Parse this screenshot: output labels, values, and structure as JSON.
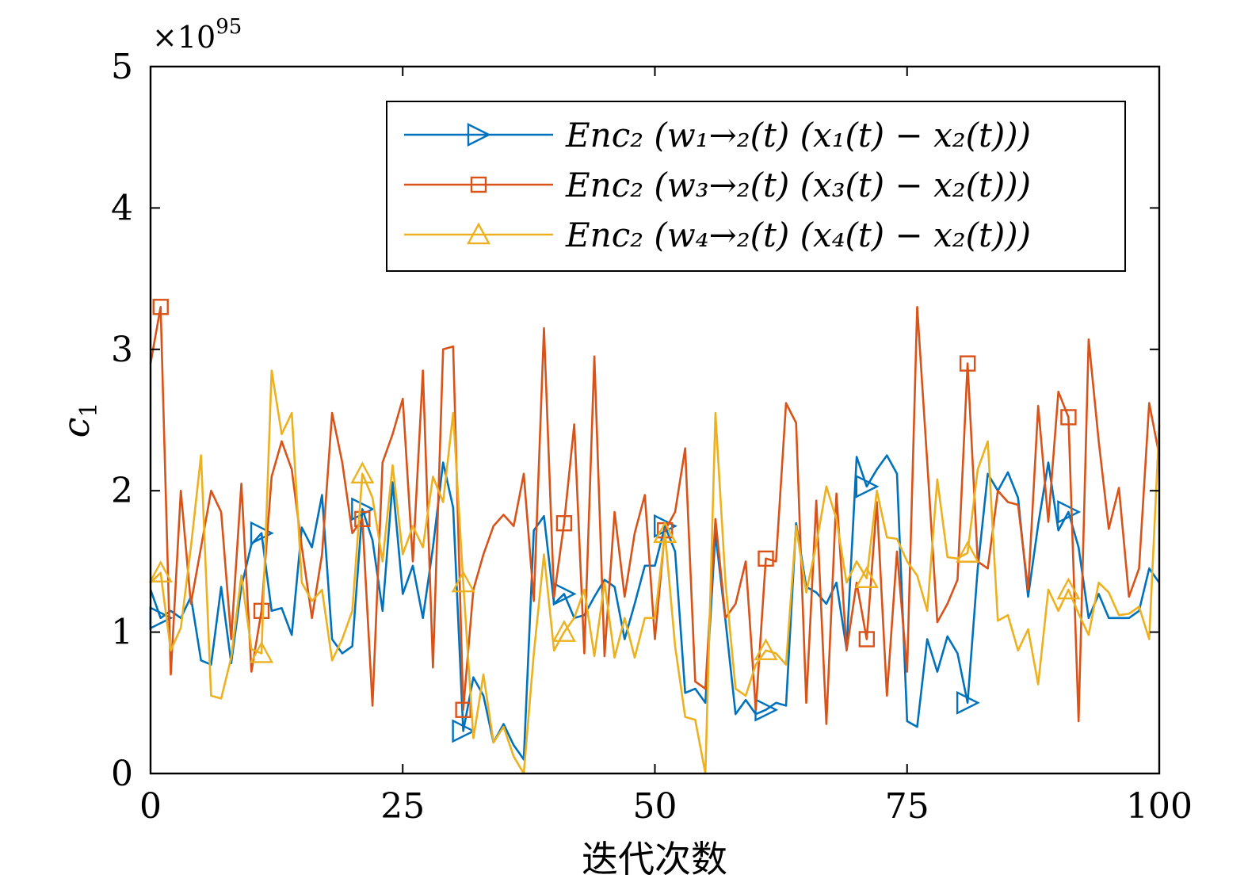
{
  "chart_data": {
    "type": "line",
    "xlabel": "迭代次数",
    "ylabel": "c_1",
    "y_multiplier": "×10^95",
    "xlim": [
      0,
      100
    ],
    "ylim": [
      0,
      5
    ],
    "x_ticks": [
      0,
      25,
      50,
      75,
      100
    ],
    "y_ticks": [
      0,
      1,
      2,
      3,
      4,
      5
    ],
    "x_tick_labels": [
      "0",
      "25",
      "50",
      "75",
      "100"
    ],
    "y_tick_labels": [
      "0",
      "1",
      "2",
      "3",
      "4",
      "5"
    ],
    "legend_position": "top-right",
    "grid": false,
    "series": [
      {
        "name": "Enc_2 (w_{1→2}(t) (x_1(t) − x_2(t)))",
        "legend_label": "Enc₂ (w₁→₂(t) (x₁(t) − x₂(t)))",
        "color": "#0072BD",
        "marker": "triangle-right",
        "marker_every": 10,
        "x": [
          0,
          1,
          2,
          3,
          4,
          5,
          6,
          7,
          8,
          9,
          10,
          11,
          12,
          13,
          14,
          15,
          16,
          17,
          18,
          19,
          20,
          21,
          22,
          23,
          24,
          25,
          26,
          27,
          28,
          29,
          30,
          31,
          32,
          33,
          34,
          35,
          36,
          37,
          38,
          39,
          40,
          41,
          42,
          43,
          44,
          45,
          46,
          47,
          48,
          49,
          50,
          51,
          52,
          53,
          54,
          55,
          56,
          57,
          58,
          59,
          60,
          61,
          62,
          63,
          64,
          65,
          66,
          67,
          68,
          69,
          70,
          71,
          72,
          73,
          74,
          75,
          76,
          77,
          78,
          79,
          80,
          81,
          82,
          83,
          84,
          85,
          86,
          87,
          88,
          89,
          90,
          91,
          92,
          93,
          94,
          95,
          96,
          97,
          98,
          99,
          100
        ],
        "values": [
          1.3,
          1.1,
          1.15,
          1.1,
          1.25,
          0.8,
          0.77,
          1.32,
          0.78,
          1.32,
          1.62,
          1.7,
          1.15,
          1.17,
          0.98,
          1.74,
          1.6,
          1.97,
          0.95,
          0.85,
          0.9,
          1.87,
          1.65,
          1.15,
          2.06,
          1.27,
          1.47,
          1.1,
          1.6,
          2.2,
          1.88,
          0.3,
          0.68,
          0.55,
          0.22,
          0.35,
          0.2,
          0.1,
          1.72,
          1.82,
          1.2,
          1.27,
          1.1,
          1.12,
          1.25,
          1.37,
          1.32,
          0.95,
          1.2,
          1.47,
          1.47,
          1.75,
          1.57,
          0.57,
          0.6,
          0.5,
          1.7,
          1.08,
          0.42,
          0.52,
          0.42,
          0.45,
          0.5,
          0.48,
          1.77,
          1.32,
          1.28,
          1.2,
          1.35,
          0.88,
          2.24,
          2.03,
          2.15,
          2.25,
          2.12,
          0.37,
          0.33,
          0.95,
          0.72,
          0.97,
          0.85,
          0.5,
          1.45,
          2.12,
          2.0,
          2.13,
          1.95,
          1.25,
          1.76,
          2.2,
          1.72,
          1.85,
          1.6,
          1.1,
          1.27,
          1.1,
          1.1,
          1.1,
          1.15,
          1.45,
          1.35
        ]
      },
      {
        "name": "Enc_2 (w_{3→2}(t) (x_3(t) − x_2(t)))",
        "legend_label": "Enc₂ (w₃→₂(t) (x₃(t) − x₂(t)))",
        "color": "#D95319",
        "marker": "square",
        "marker_every": 10,
        "x": [
          0,
          1,
          2,
          3,
          4,
          5,
          6,
          7,
          8,
          9,
          10,
          11,
          12,
          13,
          14,
          15,
          16,
          17,
          18,
          19,
          20,
          21,
          22,
          23,
          24,
          25,
          26,
          27,
          28,
          29,
          30,
          31,
          32,
          33,
          34,
          35,
          36,
          37,
          38,
          39,
          40,
          41,
          42,
          43,
          44,
          45,
          46,
          47,
          48,
          49,
          50,
          51,
          52,
          53,
          54,
          55,
          56,
          57,
          58,
          59,
          60,
          61,
          62,
          63,
          64,
          65,
          66,
          67,
          68,
          69,
          70,
          71,
          72,
          73,
          74,
          75,
          76,
          77,
          78,
          79,
          80,
          81,
          82,
          83,
          84,
          85,
          86,
          87,
          88,
          89,
          90,
          91,
          92,
          93,
          94,
          95,
          96,
          97,
          98,
          99,
          100
        ],
        "values": [
          2.9,
          3.3,
          0.7,
          2.0,
          1.2,
          1.6,
          2.0,
          1.85,
          0.95,
          2.05,
          0.72,
          1.15,
          2.1,
          2.35,
          2.15,
          1.6,
          1.1,
          1.55,
          2.55,
          2.2,
          1.7,
          1.8,
          0.48,
          2.2,
          2.4,
          2.65,
          1.5,
          2.85,
          0.75,
          3.0,
          3.02,
          0.45,
          1.3,
          1.55,
          1.75,
          1.83,
          1.75,
          2.12,
          1.22,
          3.15,
          1.25,
          1.77,
          2.47,
          0.85,
          2.95,
          0.83,
          1.85,
          1.25,
          1.7,
          1.97,
          0.95,
          1.72,
          1.85,
          2.3,
          0.65,
          0.6,
          1.8,
          1.1,
          1.2,
          1.5,
          0.45,
          1.52,
          1.5,
          2.62,
          2.48,
          0.5,
          1.93,
          0.35,
          1.98,
          0.87,
          1.35,
          0.95,
          1.92,
          0.55,
          1.57,
          0.72,
          3.3,
          2.2,
          1.07,
          1.2,
          1.37,
          2.9,
          1.5,
          1.45,
          2.0,
          1.92,
          1.9,
          1.3,
          2.6,
          1.78,
          2.7,
          2.52,
          0.37,
          3.07,
          2.35,
          1.73,
          2.02,
          1.25,
          1.45,
          2.62,
          2.25
        ]
      },
      {
        "name": "Enc_2 (w_{4→2}(t) (x_4(t) − x_2(t)))",
        "legend_label": "Enc₂ (w₄→₂(t) (x₄(t) − x₂(t)))",
        "color": "#EDB120",
        "marker": "triangle-up",
        "marker_every": 10,
        "x": [
          0,
          1,
          2,
          3,
          4,
          5,
          6,
          7,
          8,
          9,
          10,
          11,
          12,
          13,
          14,
          15,
          16,
          17,
          18,
          19,
          20,
          21,
          22,
          23,
          24,
          25,
          26,
          27,
          28,
          29,
          30,
          31,
          32,
          33,
          34,
          35,
          36,
          37,
          38,
          39,
          40,
          41,
          42,
          43,
          44,
          45,
          46,
          47,
          48,
          49,
          50,
          51,
          52,
          53,
          54,
          55,
          56,
          57,
          58,
          59,
          60,
          61,
          62,
          63,
          64,
          65,
          66,
          67,
          68,
          69,
          70,
          71,
          72,
          73,
          74,
          75,
          76,
          77,
          78,
          79,
          80,
          81,
          82,
          83,
          84,
          85,
          86,
          87,
          88,
          89,
          90,
          91,
          92,
          93,
          94,
          95,
          96,
          97,
          98,
          99,
          100
        ],
        "values": [
          1.35,
          1.42,
          0.87,
          1.03,
          1.6,
          2.25,
          0.55,
          0.53,
          0.82,
          1.4,
          0.88,
          0.85,
          2.85,
          2.4,
          2.55,
          1.35,
          1.22,
          1.3,
          0.8,
          0.95,
          1.15,
          2.12,
          1.95,
          1.5,
          2.18,
          1.55,
          1.75,
          1.6,
          2.1,
          1.92,
          2.55,
          1.35,
          0.25,
          0.7,
          0.22,
          0.33,
          0.12,
          0.0,
          0.85,
          1.55,
          0.87,
          1.0,
          1.1,
          1.3,
          0.83,
          1.35,
          0.82,
          1.1,
          0.82,
          1.1,
          1.1,
          1.7,
          0.9,
          0.4,
          0.38,
          0.0,
          2.55,
          1.35,
          0.6,
          0.55,
          0.77,
          0.87,
          0.85,
          0.77,
          1.75,
          1.28,
          1.62,
          2.03,
          1.8,
          1.35,
          1.5,
          1.38,
          2.0,
          1.67,
          1.66,
          1.5,
          1.4,
          1.15,
          2.08,
          1.53,
          1.52,
          1.56,
          2.15,
          2.35,
          1.08,
          1.12,
          0.87,
          1.02,
          0.63,
          1.3,
          1.15,
          1.3,
          1.13,
          0.98,
          1.35,
          1.28,
          1.12,
          1.13,
          1.18,
          0.95,
          2.47
        ]
      }
    ]
  }
}
